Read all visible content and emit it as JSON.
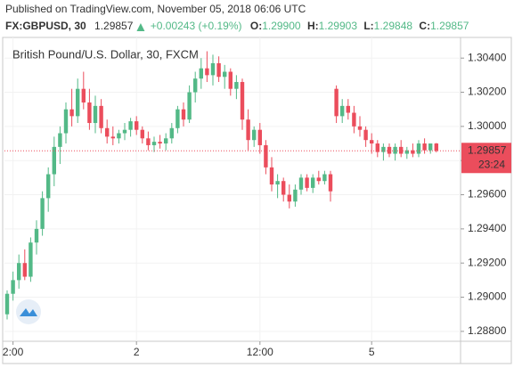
{
  "header": {
    "published": "Published on TradingView.com, November 05, 2018 06:06 UTC",
    "symbol": "FX:GBPUSD, 30",
    "last": "1.29857",
    "change": "+0.00243 (+0.19%)",
    "ohlc": [
      {
        "label": "O:",
        "value": "1.29900"
      },
      {
        "label": "H:",
        "value": "1.29903"
      },
      {
        "label": "L:",
        "value": "1.29848"
      },
      {
        "label": "C:",
        "value": "1.29857"
      }
    ]
  },
  "chart_data": {
    "type": "candlestick",
    "title": "British Pound/U.S. Dollar, 30, FXCM",
    "up_color": "#53b987",
    "down_color": "#eb4d5c",
    "grid": true,
    "last_price_label": "1.29857",
    "countdown": "23:24",
    "ylim": [
      1.28742,
      1.30521
    ],
    "yticks": [
      {
        "value": 1.288,
        "label": "1.28800"
      },
      {
        "value": 1.29,
        "label": "1.29000"
      },
      {
        "value": 1.292,
        "label": "1.29200"
      },
      {
        "value": 1.294,
        "label": "1.29400"
      },
      {
        "value": 1.296,
        "label": "1.29600"
      },
      {
        "value": 1.298,
        "label": "1.29800"
      },
      {
        "value": 1.3,
        "label": "1.30000"
      },
      {
        "value": 1.302,
        "label": "1.30200"
      },
      {
        "value": 1.304,
        "label": "1.30400"
      }
    ],
    "categories": [
      null,
      "2:00",
      null,
      null,
      null,
      null,
      null,
      null,
      null,
      null,
      null,
      null,
      null,
      null,
      null,
      null,
      null,
      null,
      null,
      null,
      null,
      null,
      "2",
      null,
      null,
      null,
      null,
      null,
      null,
      null,
      null,
      null,
      null,
      null,
      null,
      null,
      null,
      null,
      null,
      null,
      null,
      null,
      null,
      "12:00",
      null,
      null,
      null,
      null,
      null,
      null,
      null,
      null,
      null,
      null,
      null,
      null,
      null,
      null,
      null,
      null,
      null,
      null,
      "5",
      null,
      null,
      null,
      null,
      null,
      null,
      null,
      null,
      null,
      null,
      null
    ],
    "candles": [
      {
        "open": 1.289,
        "high": 1.2904,
        "low": 1.2887,
        "close": 1.2902
      },
      {
        "open": 1.2902,
        "high": 1.2915,
        "low": 1.2898,
        "close": 1.291
      },
      {
        "open": 1.291,
        "high": 1.2925,
        "low": 1.2905,
        "close": 1.292
      },
      {
        "open": 1.292,
        "high": 1.2928,
        "low": 1.291,
        "close": 1.2912
      },
      {
        "open": 1.2912,
        "high": 1.2935,
        "low": 1.2909,
        "close": 1.2932
      },
      {
        "open": 1.2932,
        "high": 1.2945,
        "low": 1.2925,
        "close": 1.294
      },
      {
        "open": 1.294,
        "high": 1.2962,
        "low": 1.2936,
        "close": 1.2958
      },
      {
        "open": 1.2958,
        "high": 1.2976,
        "low": 1.295,
        "close": 1.2972
      },
      {
        "open": 1.2972,
        "high": 1.2994,
        "low": 1.2965,
        "close": 1.2988
      },
      {
        "open": 1.2988,
        "high": 1.3,
        "low": 1.2978,
        "close": 1.2996
      },
      {
        "open": 1.2996,
        "high": 1.3014,
        "low": 1.299,
        "close": 1.301
      },
      {
        "open": 1.301,
        "high": 1.3022,
        "low": 1.3,
        "close": 1.3006
      },
      {
        "open": 1.3006,
        "high": 1.3028,
        "low": 1.3002,
        "close": 1.3022
      },
      {
        "open": 1.3022,
        "high": 1.3032,
        "low": 1.301,
        "close": 1.3014
      },
      {
        "open": 1.3014,
        "high": 1.3022,
        "low": 1.2998,
        "close": 1.3002
      },
      {
        "open": 1.3002,
        "high": 1.3018,
        "low": 1.2996,
        "close": 1.3012
      },
      {
        "open": 1.3012,
        "high": 1.3016,
        "low": 1.2996,
        "close": 1.2999
      },
      {
        "open": 1.2999,
        "high": 1.3004,
        "low": 1.299,
        "close": 1.2994
      },
      {
        "open": 1.2994,
        "high": 1.3,
        "low": 1.2989,
        "close": 1.2993
      },
      {
        "open": 1.2993,
        "high": 1.2998,
        "low": 1.299,
        "close": 1.2996
      },
      {
        "open": 1.2996,
        "high": 1.3002,
        "low": 1.2992,
        "close": 1.2998
      },
      {
        "open": 1.2998,
        "high": 1.3005,
        "low": 1.2994,
        "close": 1.3003
      },
      {
        "open": 1.3003,
        "high": 1.3006,
        "low": 1.2995,
        "close": 1.2998
      },
      {
        "open": 1.2998,
        "high": 1.3,
        "low": 1.299,
        "close": 1.2993
      },
      {
        "open": 1.2993,
        "high": 1.2997,
        "low": 1.2986,
        "close": 1.2989
      },
      {
        "open": 1.2989,
        "high": 1.2994,
        "low": 1.2985,
        "close": 1.2991
      },
      {
        "open": 1.2991,
        "high": 1.2995,
        "low": 1.2987,
        "close": 1.299
      },
      {
        "open": 1.299,
        "high": 1.2996,
        "low": 1.2986,
        "close": 1.2993
      },
      {
        "open": 1.2993,
        "high": 1.3002,
        "low": 1.299,
        "close": 1.2999
      },
      {
        "open": 1.2999,
        "high": 1.3012,
        "low": 1.2996,
        "close": 1.301
      },
      {
        "open": 1.301,
        "high": 1.3014,
        "low": 1.3,
        "close": 1.3004
      },
      {
        "open": 1.3004,
        "high": 1.3024,
        "low": 1.3002,
        "close": 1.302
      },
      {
        "open": 1.302,
        "high": 1.3032,
        "low": 1.3014,
        "close": 1.3028
      },
      {
        "open": 1.3028,
        "high": 1.304,
        "low": 1.3022,
        "close": 1.3034
      },
      {
        "open": 1.3034,
        "high": 1.3044,
        "low": 1.3026,
        "close": 1.303
      },
      {
        "open": 1.303,
        "high": 1.3042,
        "low": 1.3024,
        "close": 1.3037
      },
      {
        "open": 1.3037,
        "high": 1.3041,
        "low": 1.3026,
        "close": 1.3029
      },
      {
        "open": 1.3029,
        "high": 1.3036,
        "low": 1.3022,
        "close": 1.3032
      },
      {
        "open": 1.3032,
        "high": 1.3034,
        "low": 1.3018,
        "close": 1.3022
      },
      {
        "open": 1.3022,
        "high": 1.303,
        "low": 1.3016,
        "close": 1.3026
      },
      {
        "open": 1.3026,
        "high": 1.3028,
        "low": 1.2998,
        "close": 1.3004
      },
      {
        "open": 1.3004,
        "high": 1.301,
        "low": 1.2986,
        "close": 1.2992
      },
      {
        "open": 1.2992,
        "high": 1.3,
        "low": 1.2988,
        "close": 1.2998
      },
      {
        "open": 1.2998,
        "high": 1.3002,
        "low": 1.2984,
        "close": 1.2989
      },
      {
        "open": 1.2989,
        "high": 1.2992,
        "low": 1.2972,
        "close": 1.2976
      },
      {
        "open": 1.2976,
        "high": 1.2982,
        "low": 1.2962,
        "close": 1.2966
      },
      {
        "open": 1.2966,
        "high": 1.2972,
        "low": 1.2958,
        "close": 1.2968
      },
      {
        "open": 1.2968,
        "high": 1.297,
        "low": 1.2956,
        "close": 1.296
      },
      {
        "open": 1.296,
        "high": 1.2966,
        "low": 1.2952,
        "close": 1.2956
      },
      {
        "open": 1.2956,
        "high": 1.2966,
        "low": 1.2953,
        "close": 1.2963
      },
      {
        "open": 1.2963,
        "high": 1.2972,
        "low": 1.296,
        "close": 1.297
      },
      {
        "open": 1.297,
        "high": 1.2972,
        "low": 1.2962,
        "close": 1.2964
      },
      {
        "open": 1.2964,
        "high": 1.2972,
        "low": 1.2961,
        "close": 1.297
      },
      {
        "open": 1.297,
        "high": 1.2974,
        "low": 1.2966,
        "close": 1.2968
      },
      {
        "open": 1.2968,
        "high": 1.2974,
        "low": 1.2966,
        "close": 1.2972
      },
      {
        "open": 1.2972,
        "high": 1.2974,
        "low": 1.2956,
        "close": 1.2962
      },
      {
        "open": 1.3022,
        "high": 1.3024,
        "low": 1.3002,
        "close": 1.3006
      },
      {
        "open": 1.3006,
        "high": 1.3016,
        "low": 1.3002,
        "close": 1.3012
      },
      {
        "open": 1.3012,
        "high": 1.3016,
        "low": 1.3004,
        "close": 1.3008
      },
      {
        "open": 1.3008,
        "high": 1.3012,
        "low": 1.2996,
        "close": 1.3
      },
      {
        "open": 1.3,
        "high": 1.3006,
        "low": 1.2994,
        "close": 1.2998
      },
      {
        "open": 1.2998,
        "high": 1.3,
        "low": 1.2988,
        "close": 1.2992
      },
      {
        "open": 1.2992,
        "high": 1.2996,
        "low": 1.2984,
        "close": 1.299
      },
      {
        "open": 1.299,
        "high": 1.2992,
        "low": 1.2982,
        "close": 1.2985
      },
      {
        "open": 1.2985,
        "high": 1.299,
        "low": 1.298,
        "close": 1.2988
      },
      {
        "open": 1.2988,
        "high": 1.299,
        "low": 1.2982,
        "close": 1.2984
      },
      {
        "open": 1.2984,
        "high": 1.299,
        "low": 1.298,
        "close": 1.2988
      },
      {
        "open": 1.2988,
        "high": 1.2992,
        "low": 1.2982,
        "close": 1.2984
      },
      {
        "open": 1.2984,
        "high": 1.2988,
        "low": 1.2981,
        "close": 1.2986
      },
      {
        "open": 1.2986,
        "high": 1.299,
        "low": 1.2982,
        "close": 1.2984
      },
      {
        "open": 1.2984,
        "high": 1.2992,
        "low": 1.2982,
        "close": 1.299
      },
      {
        "open": 1.299,
        "high": 1.2993,
        "low": 1.2984,
        "close": 1.2986
      },
      {
        "open": 1.2986,
        "high": 1.299,
        "low": 1.2984,
        "close": 1.299
      },
      {
        "open": 1.299,
        "high": 1.29903,
        "low": 1.29848,
        "close": 1.29857
      }
    ]
  }
}
